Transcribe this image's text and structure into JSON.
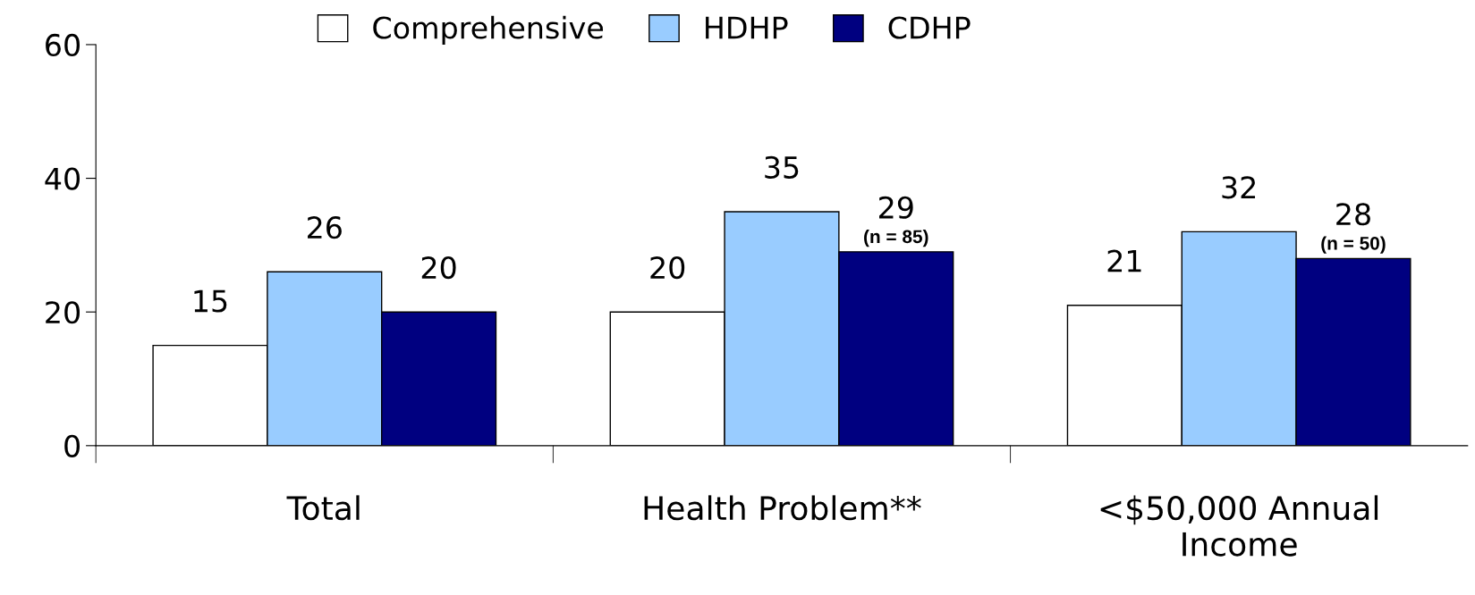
{
  "chart_data": {
    "type": "bar",
    "categories": [
      "Total",
      "Health Problem**",
      "<$50,000 Annual\nIncome"
    ],
    "series": [
      {
        "name": "Comprehensive",
        "color": "#ffffff",
        "values": [
          15,
          20,
          21
        ]
      },
      {
        "name": "HDHP",
        "color": "#99ccff",
        "values": [
          26,
          35,
          32
        ]
      },
      {
        "name": "CDHP",
        "color": "#000080",
        "values": [
          20,
          29,
          28
        ]
      }
    ],
    "ylim": [
      0,
      60
    ],
    "yticks": [
      0,
      20,
      40,
      60
    ],
    "grid": false,
    "legend": "top",
    "data_labels": true,
    "annotations": [
      "(n = 85)",
      "(n = 50)"
    ]
  }
}
